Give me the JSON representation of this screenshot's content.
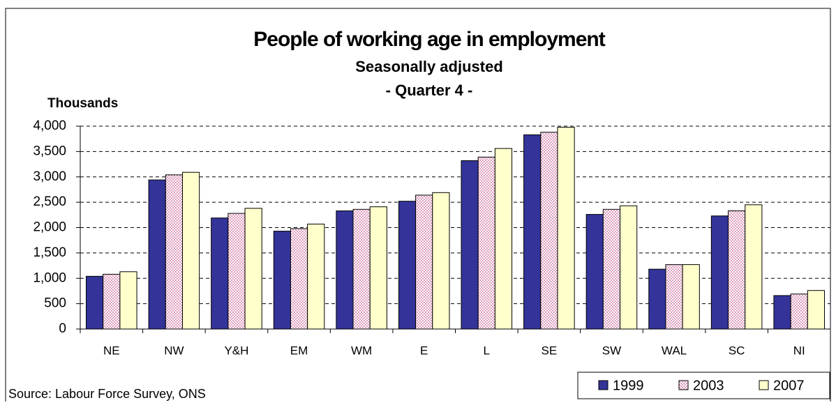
{
  "chart_data": {
    "type": "bar",
    "title": "People of working age in employment",
    "subtitle": "Seasonally adjusted",
    "period": "- Quarter 4 -",
    "y_label": "Thousands",
    "source": "Source: Labour Force Survey, ONS",
    "categories": [
      "NE",
      "NW",
      "Y&H",
      "EM",
      "WM",
      "E",
      "L",
      "SE",
      "SW",
      "WAL",
      "SC",
      "NI"
    ],
    "series": [
      {
        "name": "1999",
        "color": "#333399",
        "values": [
          1040,
          2940,
          2190,
          1930,
          2330,
          2520,
          3320,
          3830,
          2260,
          1180,
          2230,
          660
        ]
      },
      {
        "name": "2003",
        "color": "#cc6699",
        "values": [
          1080,
          3040,
          2280,
          1980,
          2360,
          2640,
          3390,
          3880,
          2360,
          1270,
          2330,
          690
        ]
      },
      {
        "name": "2007",
        "color": "#ffffcc",
        "values": [
          1130,
          3090,
          2380,
          2070,
          2410,
          2690,
          3560,
          3980,
          2430,
          1270,
          2450,
          760
        ]
      }
    ],
    "ylim": [
      0,
      4000
    ],
    "yticks": [
      0,
      500,
      {
        "value": 1000,
        "label": "1,000"
      },
      {
        "value": 1500,
        "label": "1,500"
      },
      {
        "value": 2000,
        "label": "2,000"
      },
      {
        "value": 2500,
        "label": "2,500"
      },
      {
        "value": 3000,
        "label": "3,000"
      },
      {
        "value": 3500,
        "label": "3,500"
      },
      {
        "value": 4000,
        "label": "4,000"
      }
    ],
    "grid": true,
    "legend": "bottom-right"
  }
}
